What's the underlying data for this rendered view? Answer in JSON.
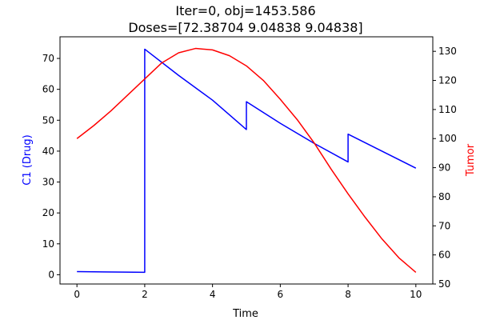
{
  "chart_data": {
    "type": "line",
    "title_lines": [
      "Iter=0, obj=1453.586",
      "Doses=[72.38704  9.04838  9.04838]"
    ],
    "xlabel": "Time",
    "ylabel_left": "C1 (Drug)",
    "ylabel_right": "Tumor",
    "xlim": [
      -0.5,
      10.5
    ],
    "ylim_left": [
      -3,
      77
    ],
    "ylim_right": [
      50,
      135
    ],
    "xticks": [
      0,
      2,
      4,
      6,
      8,
      10
    ],
    "yticks_left": [
      0,
      10,
      20,
      30,
      40,
      50,
      60,
      70
    ],
    "yticks_right": [
      50,
      60,
      70,
      80,
      90,
      100,
      110,
      120,
      130
    ],
    "colors": {
      "drug": "#0000ff",
      "tumor": "#ff0000",
      "axis_left": "#0000ff",
      "axis_right": "#ff0000"
    },
    "series": [
      {
        "axis": "left",
        "color": "#0000ff",
        "x": [
          0,
          2,
          2,
          3,
          4,
          5,
          5,
          6,
          7,
          8,
          8,
          9,
          10
        ],
        "y": [
          1.0,
          0.8,
          73.0,
          64.5,
          56.5,
          47.0,
          56.0,
          49.0,
          42.5,
          36.5,
          45.5,
          40.0,
          34.5
        ]
      },
      {
        "axis": "right",
        "color": "#ff0000",
        "x": [
          0,
          0.5,
          1,
          1.5,
          2,
          2.5,
          3,
          3.5,
          4,
          4.5,
          5,
          5.5,
          6,
          6.5,
          7,
          7.5,
          8,
          8.5,
          9,
          9.5,
          10
        ],
        "y": [
          100.0,
          104.5,
          109.5,
          115.0,
          120.5,
          126.0,
          129.5,
          131.0,
          130.5,
          128.5,
          125.0,
          120.0,
          113.5,
          106.5,
          98.5,
          89.5,
          81.0,
          73.0,
          65.5,
          59.0,
          54.0
        ]
      }
    ]
  }
}
